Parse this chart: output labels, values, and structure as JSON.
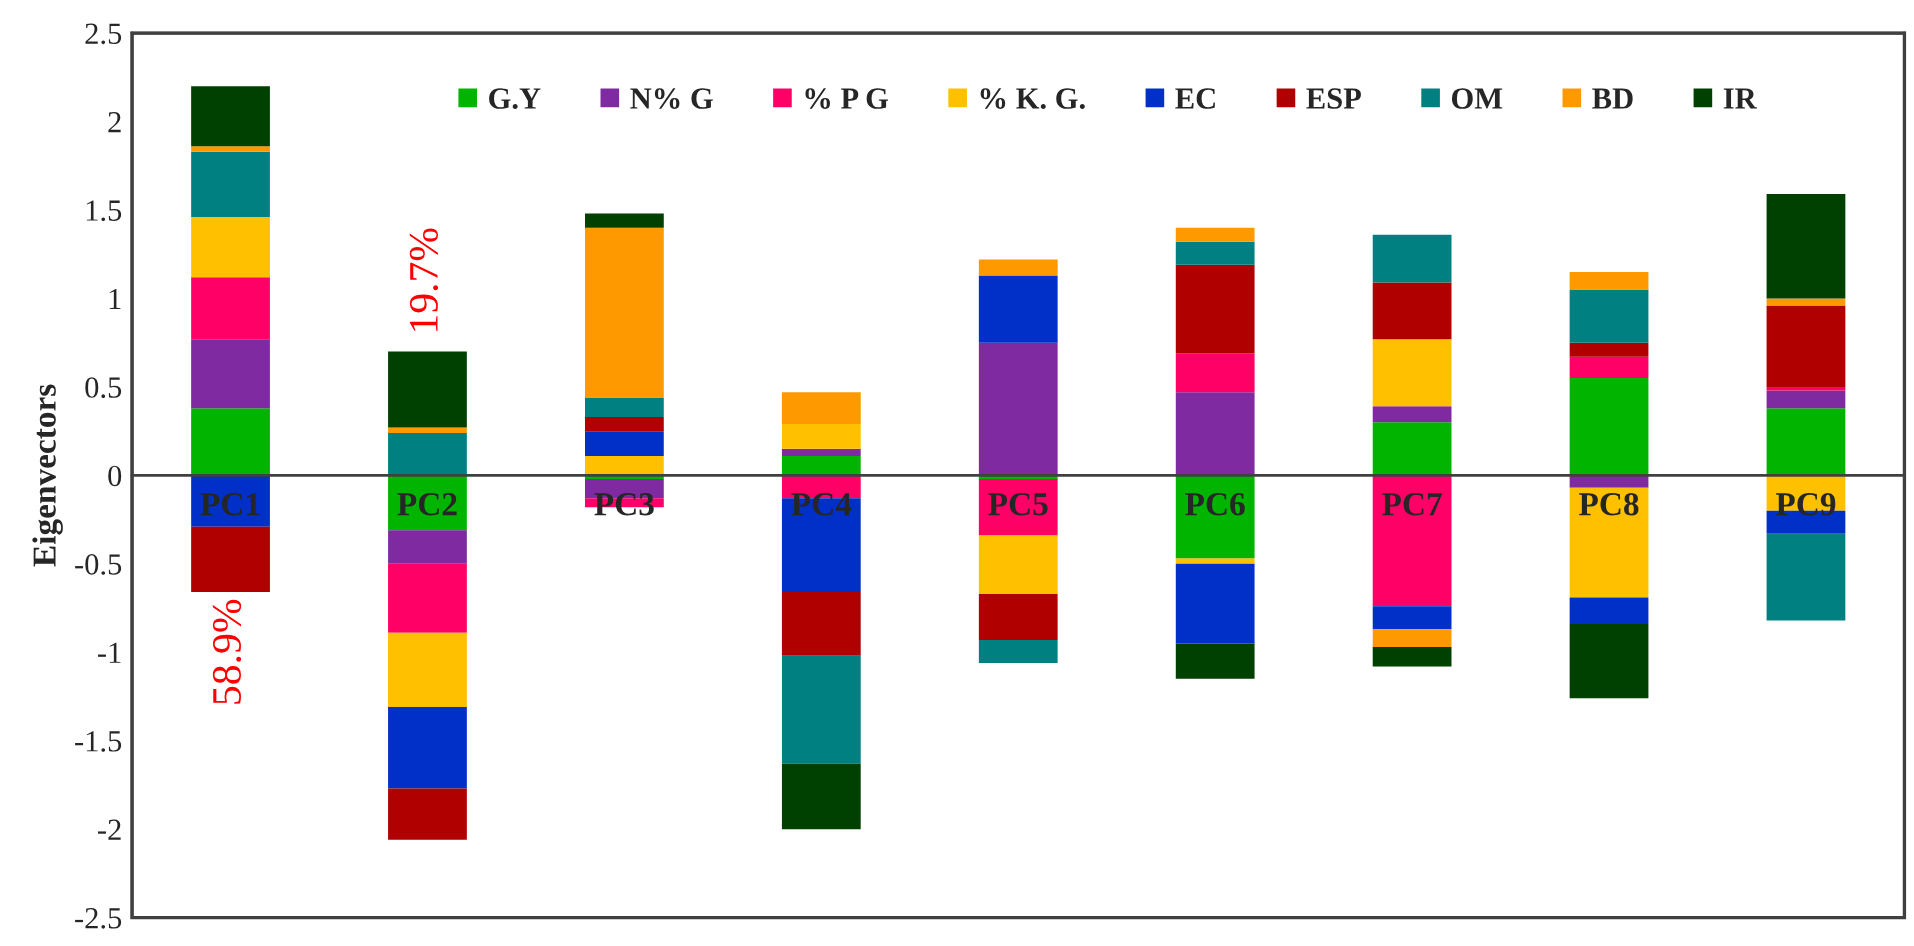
{
  "chart_data": {
    "type": "bar",
    "stacked": true,
    "ylabel": "Eigenvectors",
    "categories": [
      "PC1",
      "PC2",
      "PC3",
      "PC4",
      "PC5",
      "PC6",
      "PC7",
      "PC8",
      "PC9"
    ],
    "series": [
      {
        "name": "G.Y",
        "color": "#00b400",
        "values": [
          0.38,
          -0.31,
          -0.02,
          0.11,
          -0.02,
          -0.47,
          0.3,
          0.55,
          0.38
        ]
      },
      {
        "name": "N% G",
        "color": "#7f2aa0",
        "values": [
          0.39,
          -0.19,
          -0.11,
          0.04,
          0.75,
          0.47,
          0.09,
          -0.07,
          0.1
        ]
      },
      {
        "name": "% P G",
        "color": "#ff0066",
        "values": [
          0.35,
          -0.39,
          -0.05,
          -0.13,
          -0.32,
          0.22,
          -0.74,
          0.12,
          0.02
        ]
      },
      {
        "name": "% K. G.",
        "color": "#ffc000",
        "values": [
          0.34,
          -0.42,
          0.11,
          0.14,
          -0.33,
          -0.03,
          0.38,
          -0.62,
          -0.2
        ]
      },
      {
        "name": "EC",
        "color": "#0030c8",
        "values": [
          -0.29,
          -0.46,
          0.14,
          -0.53,
          0.38,
          -0.45,
          -0.13,
          -0.15,
          -0.13
        ]
      },
      {
        "name": "ESP",
        "color": "#b00000",
        "values": [
          -0.37,
          -0.29,
          0.08,
          -0.36,
          -0.26,
          0.5,
          0.32,
          0.08,
          0.46
        ]
      },
      {
        "name": "OM",
        "color": "#008080",
        "values": [
          0.37,
          0.24,
          0.11,
          -0.61,
          -0.13,
          0.13,
          0.27,
          0.3,
          -0.49
        ]
      },
      {
        "name": "BD",
        "color": "#ff9900",
        "values": [
          0.03,
          0.03,
          0.96,
          0.18,
          0.09,
          0.08,
          -0.1,
          0.1,
          0.04
        ]
      },
      {
        "name": "IR",
        "color": "#004000",
        "values": [
          0.34,
          0.43,
          0.08,
          -0.37,
          0,
          -0.2,
          -0.11,
          -0.42,
          0.59
        ]
      }
    ],
    "ylim": [
      -2.5,
      2.5
    ],
    "yticks": [
      -2.5,
      -2,
      -1.5,
      -1,
      -0.5,
      0,
      0.5,
      1,
      1.5,
      2,
      2.5
    ],
    "annotations": [
      "58.9%",
      "19.7%"
    ],
    "legend": "top",
    "grid": false
  }
}
